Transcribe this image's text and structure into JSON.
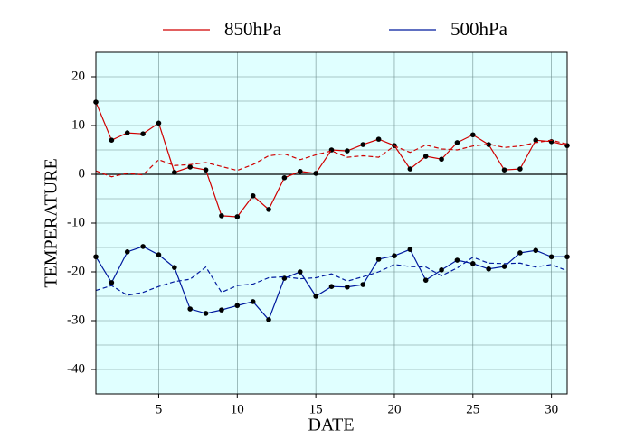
{
  "chart_data": {
    "type": "line",
    "xlabel": "DATE",
    "ylabel": "TEMPERATURE",
    "x": [
      1,
      2,
      3,
      4,
      5,
      6,
      7,
      8,
      9,
      10,
      11,
      12,
      13,
      14,
      15,
      16,
      17,
      18,
      19,
      20,
      21,
      22,
      23,
      24,
      25,
      26,
      27,
      28,
      29,
      30,
      31
    ],
    "xlim": [
      1,
      31
    ],
    "xticks": [
      5,
      10,
      15,
      20,
      25,
      30
    ],
    "ylim": [
      -45,
      25
    ],
    "yticks": [
      -40,
      -30,
      -20,
      -10,
      0,
      10,
      20
    ],
    "yminor": [
      -45,
      -35,
      -25,
      -15,
      -5,
      5,
      15,
      25
    ],
    "grid": true,
    "background": "#e0ffff",
    "legend": "top",
    "series": [
      {
        "name": "850hPa",
        "color": "#d00000",
        "markers": true,
        "values": [
          14.8,
          7.0,
          8.5,
          8.3,
          10.5,
          0.4,
          1.5,
          0.9,
          -8.5,
          -8.7,
          -4.4,
          -7.2,
          -0.7,
          0.6,
          0.2,
          5.0,
          4.8,
          6.1,
          7.2,
          5.9,
          1.1,
          3.7,
          3.1,
          6.5,
          8.1,
          6.1,
          0.9,
          1.1,
          7.0,
          6.7,
          5.9
        ]
      },
      {
        "name": "500hPa",
        "color": "#001a9e",
        "markers": true,
        "values": [
          -16.9,
          -22.2,
          -15.9,
          -14.8,
          -16.5,
          -19.1,
          -27.6,
          -28.5,
          -27.8,
          -26.9,
          -26.1,
          -29.8,
          -21.3,
          -20.0,
          -25.0,
          -23.0,
          -23.1,
          -22.6,
          -17.4,
          -16.7,
          -15.4,
          -21.7,
          -19.6,
          -17.6,
          -18.3,
          -19.4,
          -18.9,
          -16.1,
          -15.6,
          -16.9,
          -16.9
        ]
      },
      {
        "color": "#d00000",
        "dashed": true,
        "values": [
          0.7,
          -0.5,
          0.2,
          -0.1,
          3.0,
          1.8,
          2.0,
          2.4,
          1.6,
          0.8,
          2.0,
          3.8,
          4.2,
          3.0,
          4.0,
          4.8,
          3.5,
          3.8,
          3.5,
          5.8,
          4.5,
          6.0,
          5.2,
          5.0,
          5.8,
          6.2,
          5.5,
          5.8,
          6.5,
          7.0,
          6.2
        ]
      },
      {
        "color": "#001a9e",
        "dashed": true,
        "values": [
          -23.8,
          -22.8,
          -24.8,
          -24.2,
          -23.0,
          -22.0,
          -21.5,
          -19.0,
          -24.2,
          -22.8,
          -22.5,
          -21.2,
          -21.0,
          -21.4,
          -21.2,
          -20.4,
          -21.9,
          -21.0,
          -20.0,
          -18.5,
          -18.9,
          -19.0,
          -20.8,
          -19.2,
          -17.0,
          -18.2,
          -18.3,
          -18.2,
          -19.0,
          -18.5,
          -19.8
        ]
      }
    ]
  }
}
